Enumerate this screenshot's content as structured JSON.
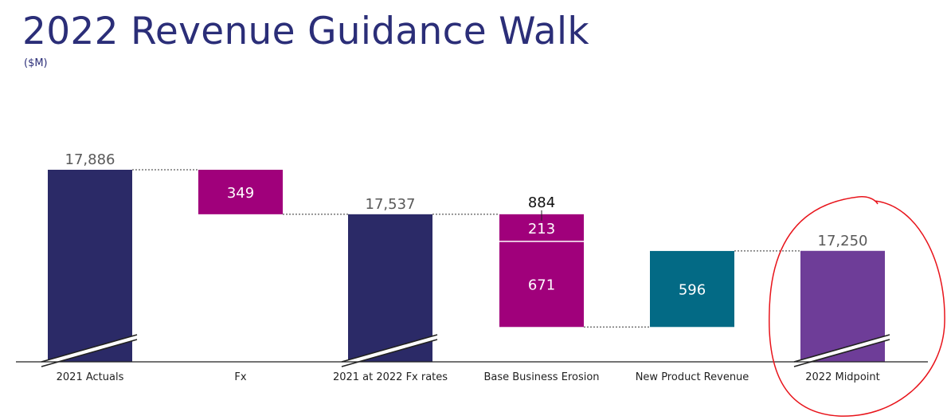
{
  "header": {
    "title": "2022 Revenue Guidance Walk",
    "subtitle": "($M)"
  },
  "colors": {
    "total": "#2b2a67",
    "decrease": "#a0007b",
    "increase": "#036a85",
    "midpoint": "#6e3d98",
    "annotation": "#e8141b"
  },
  "chart_data": {
    "type": "waterfall",
    "title": "2022 Revenue Guidance Walk",
    "ylabel": "($M)",
    "axis_break": true,
    "categories": [
      "2021 Actuals",
      "Fx",
      "2021 at 2022 Fx rates",
      "Base Business Erosion",
      "New Product Revenue",
      "2022 Midpoint"
    ],
    "steps": [
      {
        "category": "2021 Actuals",
        "kind": "total",
        "value": 17886,
        "label": "17,886"
      },
      {
        "category": "Fx",
        "kind": "decrease",
        "value": 349,
        "label": "349"
      },
      {
        "category": "2021 at 2022 Fx rates",
        "kind": "total",
        "value": 17537,
        "label": "17,537"
      },
      {
        "category": "Base Business Erosion",
        "kind": "decrease",
        "value": 884,
        "label": "884",
        "segments": [
          {
            "value": 213,
            "label": "213"
          },
          {
            "value": 671,
            "label": "671"
          }
        ]
      },
      {
        "category": "New Product Revenue",
        "kind": "increase",
        "value": 596,
        "label": "596"
      },
      {
        "category": "2022 Midpoint",
        "kind": "total",
        "value": 17250,
        "label": "17,250",
        "highlighted": true
      }
    ]
  }
}
